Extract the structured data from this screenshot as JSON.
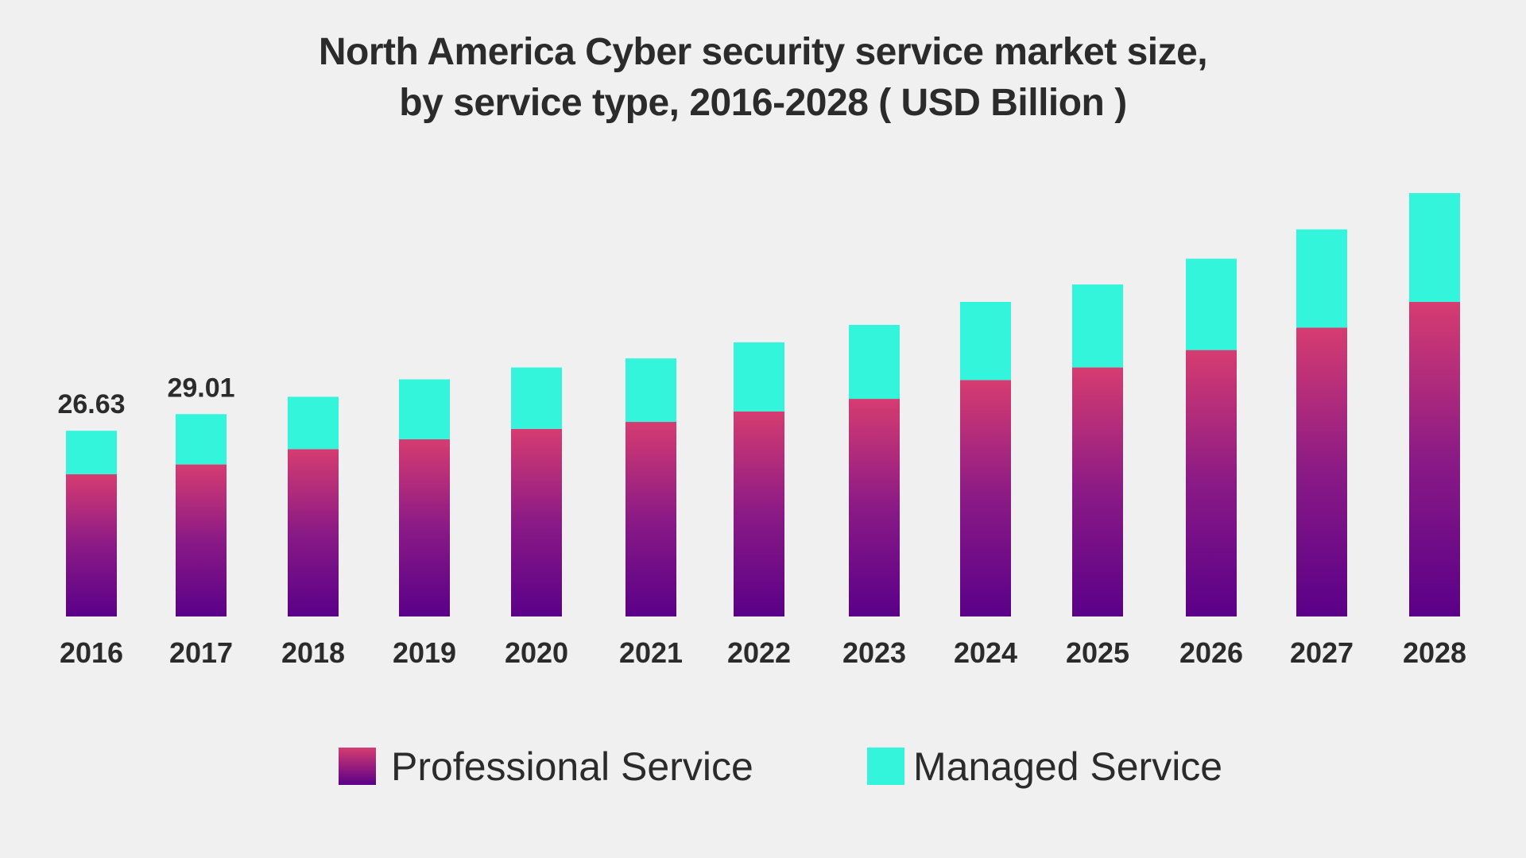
{
  "chart_data": {
    "type": "bar",
    "stacked": true,
    "title": "North America Cyber security service market size,",
    "subtitle": "by service type, 2016-2028 ( USD Billion )",
    "xlabel": "",
    "ylabel": "",
    "categories": [
      "2016",
      "2017",
      "2018",
      "2019",
      "2020",
      "2021",
      "2022",
      "2023",
      "2024",
      "2025",
      "2026",
      "2027",
      "2028"
    ],
    "series": [
      {
        "name": "Professional Service",
        "color_top": "#d63c70",
        "color_bottom": "#5a0088",
        "values": [
          20.4,
          21.8,
          24.0,
          25.4,
          26.9,
          27.9,
          29.4,
          31.2,
          33.9,
          35.7,
          38.2,
          41.4,
          45.1
        ]
      },
      {
        "name": "Managed Service",
        "color": "#33f5dc",
        "values": [
          6.23,
          7.21,
          7.5,
          8.6,
          8.8,
          9.1,
          9.9,
          10.6,
          11.2,
          11.9,
          13.1,
          14.1,
          15.6
        ]
      }
    ],
    "data_labels": [
      {
        "category": "2016",
        "text": "26.63"
      },
      {
        "category": "2017",
        "text": "29.01"
      }
    ],
    "ylim": [
      0,
      65
    ],
    "grid": false,
    "legend_position": "bottom"
  }
}
